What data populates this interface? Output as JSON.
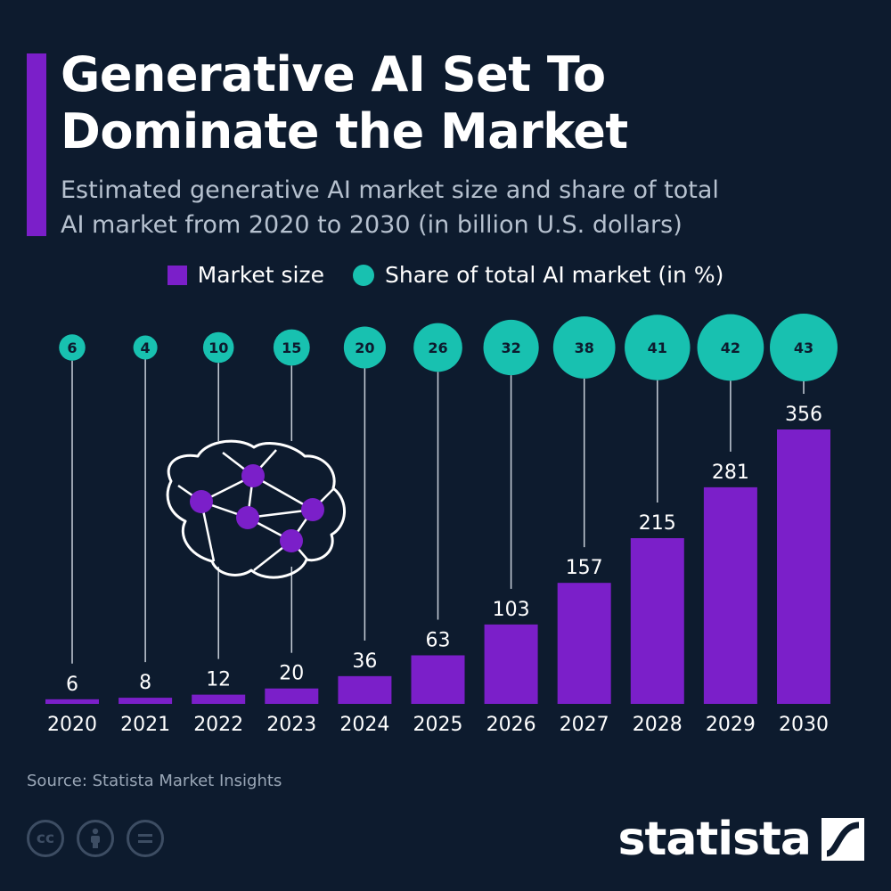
{
  "header": {
    "title_line1": "Generative AI Set To",
    "title_line2": "Dominate the Market",
    "subtitle_line1": "Estimated generative AI market size and share of total",
    "subtitle_line2": "AI market from 2020 to 2030 (in billion U.S. dollars)"
  },
  "legend": {
    "bar_label": "Market size",
    "dot_label": "Share of total AI market (in %)"
  },
  "colors": {
    "background": "#0d1b2e",
    "bar": "#7b1fc9",
    "bubble": "#18c1b0",
    "accent": "#7b1fc9"
  },
  "chart_data": {
    "type": "bar",
    "categories": [
      "2020",
      "2021",
      "2022",
      "2023",
      "2024",
      "2025",
      "2026",
      "2027",
      "2028",
      "2029",
      "2030"
    ],
    "series": [
      {
        "name": "Market size",
        "values": [
          6,
          8,
          12,
          20,
          36,
          63,
          103,
          157,
          215,
          281,
          356
        ]
      },
      {
        "name": "Share of total AI market (in %)",
        "values": [
          6,
          4,
          10,
          15,
          20,
          26,
          32,
          38,
          41,
          42,
          43
        ]
      }
    ],
    "ylim": [
      0,
      356
    ],
    "grid": false,
    "legend_position": "top-center"
  },
  "illustration": {
    "icon": "brain-network-icon"
  },
  "footer": {
    "source": "Source: Statista Market Insights",
    "brand": "statista",
    "license_icons": [
      "cc-icon",
      "by-person-icon",
      "nd-equals-icon"
    ]
  }
}
